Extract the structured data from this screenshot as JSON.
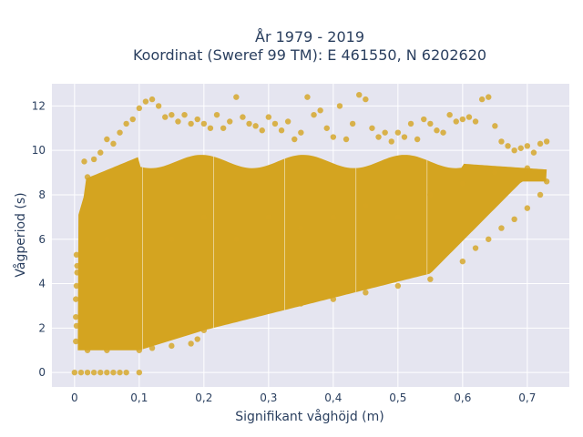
{
  "chart_data": {
    "type": "scatter",
    "title_line1": "År 1979 - 2019",
    "title_line2": "Koordinat (Sweref 99 TM): E 461550, N 6202620",
    "xlabel": "Signifikant våghöjd (m)",
    "ylabel": "Vågperiod (s)",
    "xlim": [
      -0.035,
      0.765
    ],
    "ylim": [
      -0.65,
      13.0
    ],
    "x_ticks": [
      0,
      0.1,
      0.2,
      0.3,
      0.4,
      0.5,
      0.6,
      0.7
    ],
    "x_tick_labels": [
      "0",
      "0,1",
      "0,2",
      "0,3",
      "0,4",
      "0,5",
      "0,6",
      "0,7"
    ],
    "y_ticks": [
      0,
      2,
      4,
      6,
      8,
      10,
      12
    ],
    "y_tick_labels": [
      "0",
      "2",
      "4",
      "6",
      "8",
      "10",
      "12"
    ],
    "grid": true,
    "marker_color": "#D4A420",
    "background_color": "#E5E5F0",
    "series": [
      {
        "points": [
          [
            0,
            0
          ],
          [
            0.01,
            0
          ],
          [
            0.02,
            0
          ],
          [
            0.03,
            0
          ],
          [
            0.04,
            0
          ],
          [
            0.05,
            0
          ],
          [
            0.06,
            0
          ],
          [
            0.07,
            0
          ],
          [
            0.08,
            0
          ],
          [
            0.1,
            0
          ],
          [
            0.003,
            5.3
          ],
          [
            0.004,
            4.5
          ],
          [
            0.002,
            3.3
          ],
          [
            0.003,
            2.1
          ],
          [
            0.002,
            1.4
          ],
          [
            0.004,
            4.8
          ],
          [
            0.002,
            2.5
          ],
          [
            0.003,
            3.9
          ],
          [
            0.015,
            9.5
          ],
          [
            0.02,
            8.8
          ],
          [
            0.03,
            9.6
          ],
          [
            0.04,
            9.9
          ],
          [
            0.05,
            10.5
          ],
          [
            0.06,
            10.3
          ],
          [
            0.07,
            10.8
          ],
          [
            0.08,
            11.2
          ],
          [
            0.09,
            11.4
          ],
          [
            0.1,
            11.9
          ],
          [
            0.11,
            12.2
          ],
          [
            0.12,
            12.3
          ],
          [
            0.13,
            12.0
          ],
          [
            0.14,
            11.5
          ],
          [
            0.15,
            11.6
          ],
          [
            0.16,
            11.3
          ],
          [
            0.17,
            11.6
          ],
          [
            0.18,
            11.2
          ],
          [
            0.19,
            11.4
          ],
          [
            0.2,
            11.2
          ],
          [
            0.21,
            11.0
          ],
          [
            0.22,
            11.6
          ],
          [
            0.23,
            11.0
          ],
          [
            0.24,
            11.3
          ],
          [
            0.25,
            12.4
          ],
          [
            0.26,
            11.5
          ],
          [
            0.27,
            11.2
          ],
          [
            0.28,
            11.1
          ],
          [
            0.29,
            10.9
          ],
          [
            0.3,
            11.5
          ],
          [
            0.31,
            11.2
          ],
          [
            0.32,
            10.9
          ],
          [
            0.33,
            11.3
          ],
          [
            0.34,
            10.5
          ],
          [
            0.35,
            10.8
          ],
          [
            0.36,
            12.4
          ],
          [
            0.37,
            11.6
          ],
          [
            0.38,
            11.8
          ],
          [
            0.39,
            11.0
          ],
          [
            0.4,
            10.6
          ],
          [
            0.41,
            12.0
          ],
          [
            0.42,
            10.5
          ],
          [
            0.43,
            11.2
          ],
          [
            0.44,
            12.5
          ],
          [
            0.45,
            12.3
          ],
          [
            0.46,
            11.0
          ],
          [
            0.47,
            10.6
          ],
          [
            0.48,
            10.8
          ],
          [
            0.49,
            10.4
          ],
          [
            0.5,
            10.8
          ],
          [
            0.51,
            10.6
          ],
          [
            0.52,
            11.2
          ],
          [
            0.53,
            10.5
          ],
          [
            0.54,
            11.4
          ],
          [
            0.55,
            11.2
          ],
          [
            0.56,
            10.9
          ],
          [
            0.57,
            10.8
          ],
          [
            0.58,
            11.6
          ],
          [
            0.59,
            11.3
          ],
          [
            0.6,
            11.4
          ],
          [
            0.61,
            11.5
          ],
          [
            0.62,
            11.3
          ],
          [
            0.63,
            12.3
          ],
          [
            0.64,
            12.4
          ],
          [
            0.65,
            11.1
          ],
          [
            0.66,
            10.4
          ],
          [
            0.67,
            10.2
          ],
          [
            0.68,
            10.0
          ],
          [
            0.69,
            10.1
          ],
          [
            0.7,
            10.2
          ],
          [
            0.71,
            9.9
          ],
          [
            0.72,
            10.3
          ],
          [
            0.73,
            10.4
          ],
          [
            0.02,
            1.0
          ],
          [
            0.05,
            1.0
          ],
          [
            0.1,
            1.0
          ],
          [
            0.12,
            1.1
          ],
          [
            0.15,
            1.2
          ],
          [
            0.18,
            1.3
          ],
          [
            0.19,
            1.5
          ],
          [
            0.2,
            1.9
          ],
          [
            0.25,
            2.4
          ],
          [
            0.3,
            2.8
          ],
          [
            0.35,
            3.1
          ],
          [
            0.4,
            3.3
          ],
          [
            0.45,
            3.6
          ],
          [
            0.5,
            3.9
          ],
          [
            0.55,
            4.2
          ],
          [
            0.6,
            5.0
          ],
          [
            0.62,
            5.6
          ],
          [
            0.64,
            6.0
          ],
          [
            0.66,
            6.5
          ],
          [
            0.68,
            6.9
          ],
          [
            0.7,
            7.4
          ],
          [
            0.72,
            8.0
          ],
          [
            0.73,
            8.6
          ],
          [
            0.05,
            6.0
          ],
          [
            0.1,
            5.5
          ],
          [
            0.15,
            6.0
          ],
          [
            0.2,
            7.0
          ],
          [
            0.25,
            6.0
          ],
          [
            0.3,
            7.0
          ],
          [
            0.35,
            6.5
          ],
          [
            0.4,
            7.0
          ],
          [
            0.45,
            7.5
          ],
          [
            0.5,
            7.0
          ],
          [
            0.55,
            8.0
          ],
          [
            0.6,
            8.5
          ],
          [
            0.65,
            9.0
          ],
          [
            0.7,
            9.2
          ]
        ]
      }
    ]
  }
}
